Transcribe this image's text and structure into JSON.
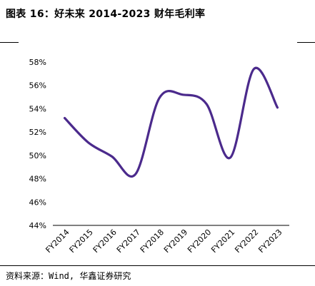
{
  "title": "图表 16：好未来 2014-2023 财年毛利率",
  "source": "资料来源：Wind, 华鑫证券研究",
  "colors": {
    "line": "#4b2a8c",
    "axis": "#000000"
  },
  "chart_data": {
    "type": "line",
    "title": "图表 16：好未来 2014-2023 财年毛利率",
    "xlabel": "",
    "ylabel": "",
    "categories": [
      "FY2014",
      "FY2015",
      "FY2016",
      "FY2017",
      "FY2018",
      "FY2019",
      "FY2020",
      "FY2021",
      "FY2022",
      "FY2023"
    ],
    "series": [
      {
        "values": [
          53.2,
          51.1,
          49.9,
          48.4,
          54.9,
          55.2,
          54.4,
          49.8,
          57.4,
          54.1
        ]
      }
    ],
    "ylim": [
      44,
      58
    ],
    "yticks": [
      "44%",
      "46%",
      "48%",
      "50%",
      "52%",
      "54%",
      "56%",
      "58%"
    ],
    "smooth": true,
    "grid": false,
    "legend": "none"
  }
}
